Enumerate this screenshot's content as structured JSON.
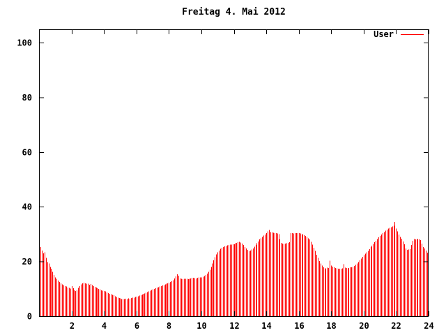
{
  "window": {
    "background": "#ffffff"
  },
  "colors": {
    "series_user": "#ff0000",
    "axis": "#000000",
    "text": "#000000",
    "background": "#ffffff"
  },
  "legend": {
    "label": "User"
  },
  "chart_data": {
    "type": "bar",
    "style": "impulses",
    "title": "Freitag 4. Mai 2012",
    "xlabel": "",
    "ylabel": "",
    "x_unit": "hour-of-day",
    "sample_interval_minutes": 5,
    "xlim": [
      0,
      24
    ],
    "ylim": [
      0,
      104.8
    ],
    "x_ticks": [
      2,
      4,
      6,
      8,
      10,
      12,
      14,
      16,
      18,
      20,
      22,
      24
    ],
    "y_ticks": [
      0,
      20,
      40,
      60,
      80,
      100
    ],
    "grid": false,
    "legend_position": "top-right",
    "series": [
      {
        "name": "User",
        "color": "#ff0000",
        "values": [
          24.3,
          25.2,
          24.0,
          23.0,
          23.3,
          21.3,
          19.8,
          19.2,
          18.0,
          17.3,
          16.2,
          15.0,
          14.2,
          13.6,
          13.0,
          12.5,
          12.0,
          11.6,
          11.3,
          11.0,
          10.8,
          10.5,
          10.3,
          10.1,
          11.0,
          10.2,
          9.5,
          9.2,
          9.5,
          10.3,
          11.0,
          11.6,
          12.0,
          12.2,
          12.0,
          11.8,
          11.8,
          11.5,
          11.7,
          11.4,
          11.0,
          10.7,
          10.4,
          10.2,
          10.0,
          9.8,
          9.5,
          9.3,
          9.2,
          9.0,
          8.7,
          8.4,
          8.2,
          8.0,
          7.8,
          7.6,
          7.3,
          7.0,
          6.8,
          6.6,
          6.5,
          6.3,
          6.2,
          6.3,
          6.4,
          6.3,
          6.5,
          6.4,
          6.6,
          6.7,
          6.8,
          7.0,
          7.1,
          7.3,
          7.5,
          7.7,
          7.9,
          8.1,
          8.3,
          8.5,
          8.8,
          9.0,
          9.3,
          9.6,
          9.8,
          10.0,
          10.2,
          10.4,
          10.6,
          10.8,
          11.0,
          11.2,
          11.4,
          11.6,
          11.8,
          12.0,
          12.2,
          12.5,
          12.8,
          13.2,
          13.8,
          14.5,
          15.3,
          14.8,
          13.8,
          13.6,
          13.5,
          13.6,
          13.7,
          13.6,
          13.5,
          13.7,
          13.8,
          14.0,
          14.0,
          13.9,
          13.8,
          14.0,
          14.1,
          14.1,
          14.2,
          14.4,
          14.7,
          15.0,
          15.5,
          16.2,
          17.0,
          18.0,
          19.2,
          20.4,
          21.6,
          22.6,
          23.4,
          24.0,
          24.6,
          25.0,
          25.3,
          25.5,
          25.7,
          25.9,
          26.0,
          26.1,
          26.2,
          26.3,
          26.3,
          26.6,
          26.8,
          27.0,
          27.2,
          26.9,
          26.5,
          26.0,
          25.3,
          24.8,
          24.2,
          23.7,
          24.0,
          24.4,
          24.8,
          25.4,
          26.0,
          26.7,
          27.3,
          28.0,
          28.5,
          29.0,
          29.5,
          29.9,
          30.3,
          31.0,
          31.5,
          30.8,
          30.6,
          30.5,
          30.4,
          30.3,
          30.2,
          30.0,
          28.0,
          26.8,
          26.5,
          26.4,
          26.5,
          26.6,
          26.8,
          27.0,
          30.4,
          30.3,
          30.2,
          30.3,
          30.4,
          30.3,
          30.3,
          30.2,
          30.0,
          29.8,
          29.6,
          29.3,
          29.0,
          28.5,
          28.0,
          27.2,
          26.2,
          25.0,
          23.8,
          22.5,
          21.3,
          20.2,
          19.3,
          18.5,
          17.9,
          17.6,
          17.4,
          17.7,
          17.6,
          20.3,
          18.5,
          18.1,
          17.8,
          17.6,
          17.5,
          17.4,
          17.3,
          17.4,
          17.5,
          19.0,
          17.7,
          17.6,
          17.5,
          17.6,
          17.8,
          17.9,
          18.0,
          18.4,
          18.8,
          19.3,
          19.8,
          20.4,
          21.0,
          21.7,
          22.3,
          22.8,
          23.3,
          23.9,
          24.5,
          25.2,
          25.8,
          26.4,
          27.0,
          27.6,
          28.2,
          28.8,
          29.3,
          29.8,
          30.3,
          30.8,
          31.2,
          31.6,
          32.0,
          32.3,
          32.5,
          32.8,
          33.0,
          34.5,
          32.0,
          31.0,
          29.8,
          29.0,
          28.3,
          27.3,
          26.3,
          24.8,
          24.2,
          24.3,
          24.5,
          26.0,
          27.5,
          28.2,
          28.0,
          28.1,
          28.2,
          28.0,
          27.8,
          26.5,
          25.3,
          24.7,
          24.0,
          23.2
        ]
      }
    ]
  }
}
